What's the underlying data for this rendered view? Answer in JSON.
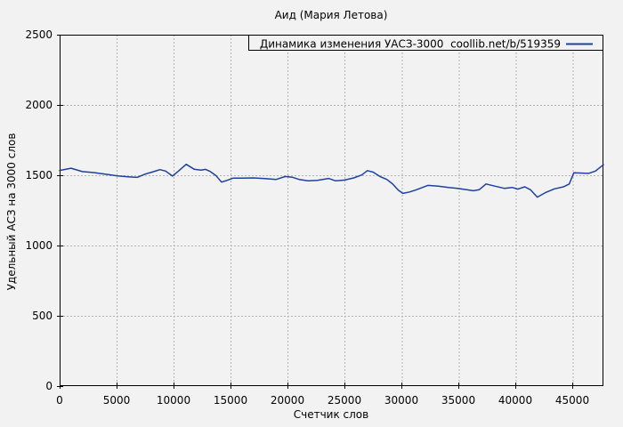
{
  "window": {
    "background": "#f2f2f2"
  },
  "chart_data": {
    "type": "line",
    "title": "Аид (Мария Летова)",
    "xlabel": "Счетчик слов",
    "ylabel": "Удельный АСЗ на 3000 слов",
    "xlim": [
      0,
      47700
    ],
    "ylim": [
      0,
      2500
    ],
    "xticks": [
      0,
      5000,
      10000,
      15000,
      20000,
      25000,
      30000,
      35000,
      40000,
      45000
    ],
    "yticks": [
      0,
      500,
      1000,
      1500,
      2000,
      2500
    ],
    "grid": true,
    "legend_position": "top-right-boxed",
    "colors": {
      "line": "#1e409e",
      "grid": "#b0b0b0",
      "axis": "#000000",
      "text": "#000000",
      "background": "#f2f2f2"
    },
    "series": [
      {
        "name": "Динамика изменения УАСЗ-3000  coollib.net/b/519359",
        "x": [
          0,
          1000,
          2000,
          3000,
          4000,
          5000,
          6000,
          6800,
          7500,
          8200,
          8800,
          9300,
          9900,
          10400,
          11100,
          11800,
          12400,
          12800,
          13200,
          13700,
          14200,
          14700,
          15200,
          16000,
          17000,
          18000,
          19000,
          19800,
          20400,
          21000,
          21800,
          22600,
          23600,
          24200,
          25000,
          25800,
          26500,
          27000,
          27500,
          28100,
          28700,
          29200,
          29700,
          30100,
          30700,
          31300,
          32300,
          33200,
          34100,
          34900,
          35700,
          36300,
          36800,
          37400,
          38200,
          39000,
          39700,
          40200,
          40800,
          41300,
          41900,
          42600,
          43400,
          44200,
          44700,
          45100,
          45900,
          46400,
          47000,
          47700
        ],
        "values": [
          1534,
          1550,
          1526,
          1519,
          1508,
          1496,
          1489,
          1485,
          1508,
          1525,
          1540,
          1530,
          1494,
          1528,
          1578,
          1543,
          1536,
          1542,
          1527,
          1499,
          1451,
          1464,
          1479,
          1479,
          1481,
          1476,
          1470,
          1491,
          1486,
          1470,
          1460,
          1464,
          1477,
          1460,
          1466,
          1481,
          1502,
          1533,
          1522,
          1491,
          1470,
          1439,
          1395,
          1371,
          1381,
          1397,
          1428,
          1422,
          1413,
          1407,
          1397,
          1390,
          1397,
          1438,
          1422,
          1407,
          1413,
          1401,
          1418,
          1397,
          1344,
          1376,
          1403,
          1418,
          1438,
          1517,
          1515,
          1513,
          1530,
          1575
        ]
      }
    ]
  }
}
